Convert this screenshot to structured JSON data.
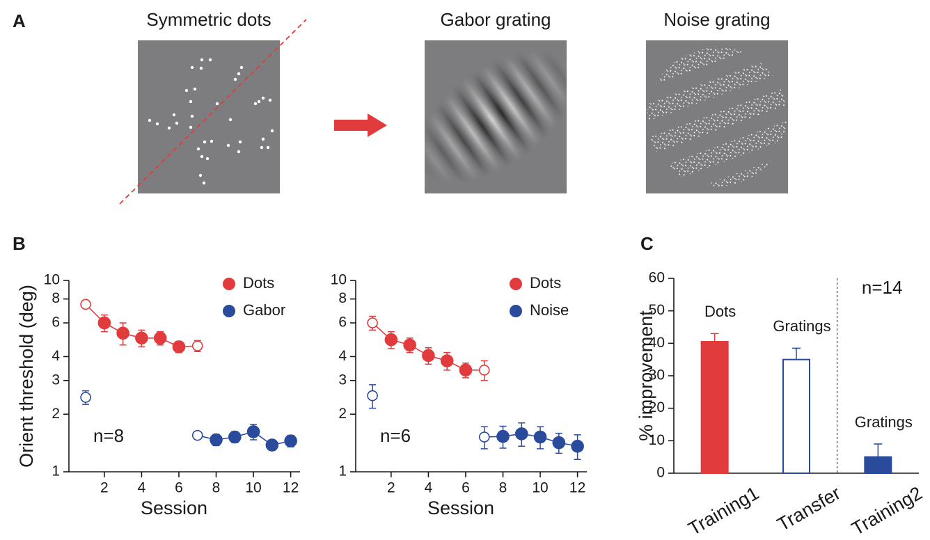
{
  "panel_labels": [
    "A",
    "B",
    "C"
  ],
  "panel_a": {
    "titles": [
      "Symmetric dots",
      "Gabor grating",
      "Noise grating"
    ]
  },
  "chart_data": [
    {
      "type": "line",
      "ylabel": "Orient threshold (deg)",
      "xlabel": "Session",
      "log_y": true,
      "ylim": [
        1,
        10
      ],
      "yticks": [
        1,
        2,
        3,
        4,
        6,
        8,
        10
      ],
      "xlim": [
        0.1,
        12.5
      ],
      "xticks": [
        2,
        4,
        6,
        8,
        10,
        12
      ],
      "legend": "upper right",
      "annotation": "n=8",
      "series": [
        {
          "name": "Dots",
          "color": "#e23b3d",
          "x": [
            1,
            2,
            3,
            4,
            5,
            6,
            7
          ],
          "values": [
            7.5,
            6.0,
            5.3,
            5.0,
            5.0,
            4.5,
            4.55
          ],
          "errors": [
            0.3,
            0.6,
            0.7,
            0.5,
            0.4,
            0.3,
            0.3
          ],
          "open": [
            true,
            false,
            false,
            false,
            false,
            false,
            true
          ]
        },
        {
          "name": "Gabor",
          "color": "#2a4a9c",
          "x": [
            1,
            2,
            3,
            4,
            5,
            6,
            7,
            8,
            9,
            10,
            11,
            12
          ],
          "values": [
            2.45,
            null,
            null,
            null,
            null,
            null,
            1.55,
            1.47,
            1.52,
            1.62,
            1.38,
            1.45
          ],
          "errors": [
            0.2,
            null,
            null,
            null,
            null,
            null,
            0.06,
            0.1,
            0.1,
            0.15,
            0.08,
            0.1
          ],
          "open": [
            true,
            false,
            false,
            false,
            false,
            false,
            true,
            false,
            false,
            false,
            false,
            false
          ]
        }
      ]
    },
    {
      "type": "line",
      "xlabel": "Session",
      "log_y": true,
      "ylim": [
        1,
        10
      ],
      "yticks": [
        1,
        2,
        3,
        4,
        6,
        8,
        10
      ],
      "xlim": [
        0.1,
        12.5
      ],
      "xticks": [
        2,
        4,
        6,
        8,
        10,
        12
      ],
      "legend": "upper right",
      "annotation": "n=6",
      "series": [
        {
          "name": "Dots",
          "color": "#e23b3d",
          "x": [
            1,
            2,
            3,
            4,
            5,
            6,
            7
          ],
          "values": [
            6.0,
            4.9,
            4.6,
            4.05,
            3.8,
            3.4,
            3.4
          ],
          "errors": [
            0.5,
            0.5,
            0.4,
            0.4,
            0.4,
            0.3,
            0.4
          ],
          "open": [
            true,
            false,
            false,
            false,
            false,
            false,
            true
          ]
        },
        {
          "name": "Noise",
          "color": "#2a4a9c",
          "x": [
            1,
            2,
            3,
            4,
            5,
            6,
            7,
            8,
            9,
            10,
            11,
            12
          ],
          "values": [
            2.5,
            null,
            null,
            null,
            null,
            null,
            1.52,
            1.53,
            1.58,
            1.52,
            1.42,
            1.36
          ],
          "errors": [
            0.35,
            null,
            null,
            null,
            null,
            null,
            0.2,
            0.2,
            0.22,
            0.2,
            0.17,
            0.2
          ],
          "open": [
            true,
            false,
            false,
            false,
            false,
            false,
            true,
            false,
            false,
            false,
            false,
            false
          ]
        }
      ]
    },
    {
      "type": "bar",
      "ylabel": "% improvement",
      "ylim": [
        0,
        60
      ],
      "yticks": [
        0,
        10,
        20,
        30,
        40,
        50,
        60
      ],
      "categories": [
        "Training1",
        "Transfer",
        "Training2"
      ],
      "values": [
        40.5,
        35,
        5
      ],
      "errors": [
        2.5,
        3.5,
        4
      ],
      "colors": [
        "#e23b3d",
        "#2a4a9c",
        "#2a4a9c"
      ],
      "open": [
        false,
        true,
        false
      ],
      "bar_labels": [
        "Dots",
        "Gratings",
        "Gratings"
      ],
      "annotation": "n=14"
    }
  ]
}
